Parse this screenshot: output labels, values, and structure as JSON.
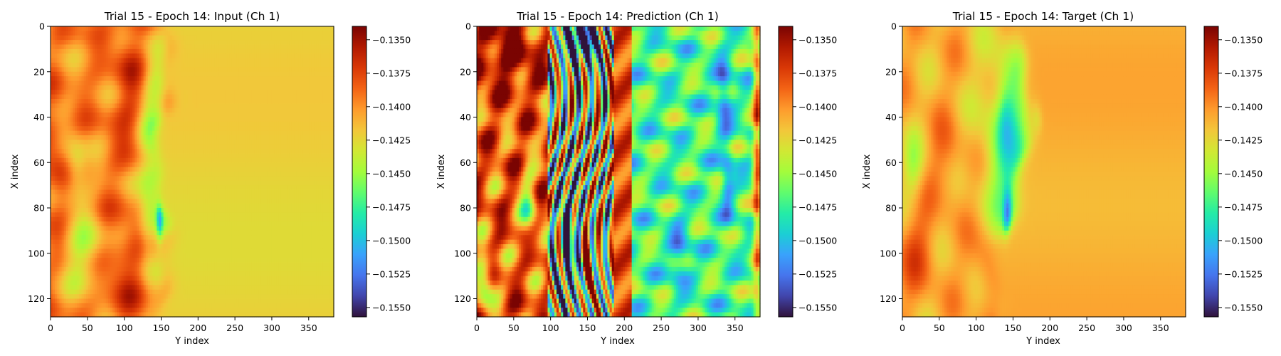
{
  "chart_data": [
    {
      "type": "heatmap",
      "title": "Trial 15 - Epoch 14: Input (Ch 1)",
      "xlabel": "Y index",
      "ylabel": "X index",
      "xlim": [
        0,
        384
      ],
      "ylim": [
        128,
        0
      ],
      "x_ticks": [
        "0",
        "50",
        "100",
        "150",
        "200",
        "250",
        "300",
        "350"
      ],
      "y_ticks": [
        "0",
        "20",
        "40",
        "60",
        "80",
        "100",
        "120"
      ],
      "colormap": "turbo",
      "colorbar": {
        "vmin": -0.1557,
        "vmax": -0.134,
        "ticks": [
          "−0.1350",
          "−0.1375",
          "−0.1400",
          "−0.1425",
          "−0.1450",
          "−0.1475",
          "−0.1500",
          "−0.1525",
          "−0.1550"
        ]
      },
      "field": "input"
    },
    {
      "type": "heatmap",
      "title": "Trial 15 - Epoch 14: Prediction (Ch 1)",
      "xlabel": "Y index",
      "ylabel": "X index",
      "xlim": [
        0,
        384
      ],
      "ylim": [
        128,
        0
      ],
      "x_ticks": [
        "0",
        "50",
        "100",
        "150",
        "200",
        "250",
        "300",
        "350"
      ],
      "y_ticks": [
        "0",
        "20",
        "40",
        "60",
        "80",
        "100",
        "120"
      ],
      "colormap": "turbo",
      "colorbar": {
        "vmin": -0.1557,
        "vmax": -0.134,
        "ticks": [
          "−0.1350",
          "−0.1375",
          "−0.1400",
          "−0.1425",
          "−0.1450",
          "−0.1475",
          "−0.1500",
          "−0.1525",
          "−0.1550"
        ]
      },
      "field": "prediction"
    },
    {
      "type": "heatmap",
      "title": "Trial 15 - Epoch 14: Target (Ch 1)",
      "xlabel": "Y index",
      "ylabel": "X index",
      "xlim": [
        0,
        384
      ],
      "ylim": [
        128,
        0
      ],
      "x_ticks": [
        "0",
        "50",
        "100",
        "150",
        "200",
        "250",
        "300",
        "350"
      ],
      "y_ticks": [
        "0",
        "20",
        "40",
        "60",
        "80",
        "100",
        "120"
      ],
      "colormap": "turbo",
      "colorbar": {
        "vmin": -0.1557,
        "vmax": -0.134,
        "ticks": [
          "−0.1350",
          "−0.1375",
          "−0.1400",
          "−0.1425",
          "−0.1450",
          "−0.1475",
          "−0.1500",
          "−0.1525",
          "−0.1550"
        ]
      },
      "field": "target"
    }
  ]
}
